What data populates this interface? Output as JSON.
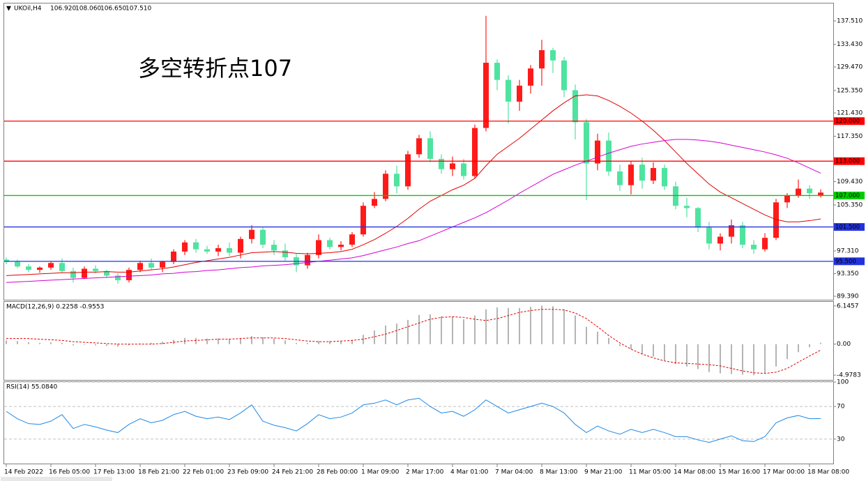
{
  "chart_data": [
    {
      "type": "candlestick",
      "title": "UKOil,H4",
      "header_values": [
        "106.920",
        "108.060",
        "106.650",
        "107.510"
      ],
      "annotation": "多空转折点107",
      "annotation_color": "#ff0000",
      "categories": [
        "14 Feb 2022",
        null,
        null,
        null,
        "16 Feb 05:00",
        null,
        null,
        null,
        "17 Feb 13:00",
        null,
        null,
        null,
        "18 Feb 21:00",
        null,
        null,
        null,
        "22 Feb 01:00",
        null,
        null,
        null,
        "23 Feb 09:00",
        null,
        null,
        null,
        "24 Feb 21:00",
        null,
        null,
        null,
        "28 Feb 00:00",
        null,
        null,
        null,
        "1 Mar 09:00",
        null,
        null,
        null,
        "2 Mar 17:00",
        null,
        null,
        null,
        "4 Mar 01:00",
        null,
        null,
        null,
        "7 Mar 04:00",
        null,
        null,
        null,
        "8 Mar 13:00",
        null,
        null,
        null,
        "9 Mar 21:00",
        null,
        null,
        null,
        "11 Mar 05:00",
        null,
        null,
        null,
        "14 Mar 08:00",
        null,
        null,
        null,
        "15 Mar 16:00",
        null,
        null,
        null,
        "17 Mar 00:00",
        null,
        null,
        null,
        "18 Mar 08:00",
        null
      ],
      "open": [
        95.8,
        95.4,
        94.6,
        94.0,
        94.4,
        95.2,
        93.8,
        92.6,
        94.2,
        93.8,
        93.0,
        92.2,
        94.0,
        95.2,
        94.4,
        95.4,
        97.2,
        98.8,
        97.6,
        97.2,
        97.8,
        97.0,
        99.4,
        101.0,
        98.4,
        97.4,
        96.2,
        94.8,
        96.6,
        99.2,
        98.0,
        98.4,
        100.2,
        105.2,
        106.4,
        110.8,
        108.6,
        114.2,
        117.0,
        113.4,
        111.6,
        112.6,
        110.4,
        118.8,
        130.2,
        127.2,
        123.4,
        126.2,
        129.2,
        132.4,
        130.6,
        125.4,
        119.8,
        112.6,
        116.6,
        111.2,
        108.8,
        112.4,
        109.6,
        111.8,
        108.6,
        105.2,
        104.8,
        101.4,
        98.6,
        99.8,
        101.8,
        98.4,
        97.6,
        99.6,
        105.8,
        107.0,
        108.2,
        106.92
      ],
      "high": [
        96.2,
        95.8,
        95.0,
        94.6,
        95.4,
        96.0,
        94.4,
        94.6,
        94.8,
        94.0,
        93.4,
        94.4,
        95.6,
        96.0,
        95.6,
        97.6,
        99.2,
        99.4,
        98.2,
        98.4,
        98.8,
        99.8,
        101.8,
        101.4,
        99.2,
        98.6,
        96.8,
        97.0,
        100.2,
        99.6,
        99.0,
        100.6,
        105.8,
        107.6,
        111.4,
        112.2,
        114.8,
        117.6,
        118.2,
        114.2,
        113.8,
        113.4,
        119.4,
        138.4,
        130.8,
        128.0,
        127.2,
        129.8,
        134.2,
        132.8,
        131.2,
        126.4,
        120.4,
        117.8,
        118.0,
        112.4,
        113.0,
        113.6,
        112.8,
        112.4,
        109.4,
        106.6,
        105.0,
        102.4,
        100.4,
        102.8,
        102.4,
        99.2,
        100.4,
        106.4,
        107.4,
        109.8,
        108.8,
        108.06
      ],
      "low": [
        95.0,
        94.3,
        93.6,
        93.5,
        94.0,
        93.4,
        91.8,
        92.4,
        93.4,
        92.6,
        91.6,
        91.8,
        93.6,
        94.0,
        93.6,
        95.0,
        96.6,
        97.0,
        96.8,
        96.4,
        96.4,
        96.0,
        98.6,
        97.8,
        96.6,
        95.6,
        93.6,
        94.2,
        96.0,
        97.6,
        97.4,
        98.0,
        99.8,
        104.8,
        106.0,
        107.4,
        108.0,
        113.6,
        112.8,
        110.8,
        110.4,
        109.8,
        110.0,
        118.2,
        125.4,
        119.6,
        121.8,
        124.8,
        126.2,
        128.4,
        124.2,
        116.8,
        106.2,
        111.4,
        110.4,
        107.8,
        107.2,
        108.2,
        109.0,
        108.0,
        104.6,
        103.2,
        100.6,
        97.6,
        97.4,
        98.6,
        97.8,
        96.8,
        97.2,
        99.2,
        104.8,
        106.6,
        106.4,
        106.65
      ],
      "close": [
        95.4,
        94.6,
        94.0,
        94.4,
        95.2,
        93.8,
        92.6,
        94.2,
        93.8,
        93.0,
        92.2,
        94.0,
        95.2,
        94.4,
        95.4,
        97.2,
        98.8,
        97.6,
        97.2,
        97.8,
        97.0,
        99.4,
        101.0,
        98.4,
        97.4,
        96.2,
        94.8,
        96.6,
        99.2,
        98.0,
        98.4,
        100.2,
        105.2,
        106.4,
        110.8,
        108.6,
        114.2,
        117.0,
        113.4,
        111.6,
        112.6,
        110.4,
        118.8,
        130.2,
        127.2,
        123.4,
        126.2,
        129.2,
        132.4,
        130.6,
        125.4,
        119.8,
        112.6,
        116.6,
        111.2,
        108.8,
        112.4,
        109.6,
        111.8,
        108.6,
        105.2,
        104.8,
        101.4,
        98.6,
        99.8,
        101.8,
        98.4,
        97.6,
        99.6,
        105.8,
        107.0,
        108.2,
        107.4,
        107.51
      ],
      "up_color": "#ff1a1a",
      "down_color": "#4fe3a0",
      "overlays": [
        {
          "color": "#e00000",
          "values": [
            93.0,
            93.1,
            93.2,
            93.3,
            93.4,
            93.5,
            93.5,
            93.6,
            93.6,
            93.7,
            93.6,
            93.6,
            93.8,
            94.0,
            94.2,
            94.5,
            94.9,
            95.3,
            95.6,
            95.9,
            96.2,
            96.6,
            97.0,
            97.1,
            97.2,
            97.1,
            96.9,
            96.8,
            96.9,
            97.0,
            97.2,
            97.6,
            98.4,
            99.3,
            100.4,
            101.6,
            103.0,
            104.6,
            106.0,
            107.0,
            108.0,
            108.8,
            110.0,
            112.2,
            114.2,
            115.6,
            117.0,
            118.6,
            120.2,
            121.8,
            123.2,
            124.4,
            124.6,
            124.4,
            123.6,
            122.6,
            121.4,
            120.0,
            118.4,
            116.6,
            114.6,
            112.6,
            110.8,
            109.0,
            107.6,
            106.6,
            105.6,
            104.6,
            103.6,
            102.8,
            102.4,
            102.4,
            102.6,
            102.9
          ]
        },
        {
          "color": "#d400d4",
          "values": [
            91.8,
            91.9,
            92.0,
            92.1,
            92.2,
            92.3,
            92.4,
            92.5,
            92.6,
            92.7,
            92.8,
            92.9,
            93.0,
            93.1,
            93.3,
            93.4,
            93.6,
            93.7,
            93.9,
            94.0,
            94.2,
            94.4,
            94.5,
            94.7,
            94.8,
            94.9,
            95.1,
            95.3,
            95.5,
            95.7,
            95.9,
            96.1,
            96.5,
            97.0,
            97.5,
            98.0,
            98.6,
            99.1,
            99.9,
            100.7,
            101.5,
            102.3,
            103.1,
            104.0,
            105.1,
            106.2,
            107.4,
            108.5,
            109.6,
            110.7,
            111.5,
            112.3,
            113.0,
            113.7,
            114.4,
            115.0,
            115.6,
            116.0,
            116.3,
            116.6,
            116.8,
            116.8,
            116.7,
            116.5,
            116.2,
            115.8,
            115.4,
            115.0,
            114.6,
            114.1,
            113.5,
            112.7,
            111.8,
            110.9
          ]
        }
      ],
      "levels": [
        {
          "value": 120,
          "label": "120.000",
          "color": "#ff0000"
        },
        {
          "value": 113,
          "label": "113.000",
          "color": "#ff0000"
        },
        {
          "value": 107,
          "label": "107.000",
          "color": "#00cc00"
        },
        {
          "value": 101.5,
          "label": "101.500",
          "color": "#2233dd"
        },
        {
          "value": 95.5,
          "label": "95.500",
          "color": "#2233dd"
        }
      ],
      "ylim": [
        88.78,
        140.555
      ],
      "yticks": [
        {
          "value": 137.51,
          "label": "137.510"
        },
        {
          "value": 133.43,
          "label": "133.430"
        },
        {
          "value": 129.47,
          "label": "129.470"
        },
        {
          "value": 125.35,
          "label": "125.350"
        },
        {
          "value": 121.43,
          "label": "121.430"
        },
        {
          "value": 117.35,
          "label": "117.350"
        },
        {
          "value": 109.43,
          "label": "109.430"
        },
        {
          "value": 105.35,
          "label": "105.350"
        },
        {
          "value": 97.31,
          "label": "97.310"
        },
        {
          "value": 93.35,
          "label": "93.350"
        },
        {
          "value": 89.39,
          "label": "89.390"
        }
      ],
      "grid": false
    },
    {
      "type": "macd",
      "title": "MACD(12,26,9) 0.2258 -0.9553",
      "histogram": {
        "color": "#b4b4b4",
        "values": [
          0.6,
          0.5,
          0.3,
          0.2,
          0.3,
          0.2,
          -0.2,
          -0.1,
          -0.2,
          -0.3,
          -0.4,
          -0.2,
          0.1,
          0.2,
          0.4,
          0.7,
          1.0,
          1.0,
          0.9,
          0.9,
          0.8,
          1.0,
          1.3,
          1.1,
          0.9,
          0.6,
          0.2,
          0.2,
          0.5,
          0.5,
          0.5,
          0.7,
          1.5,
          2.2,
          3.0,
          3.3,
          3.9,
          4.7,
          4.8,
          4.5,
          4.4,
          4.0,
          4.6,
          5.6,
          5.9,
          5.8,
          5.8,
          6.0,
          6.2,
          6.1,
          5.6,
          4.6,
          2.8,
          2.0,
          1.0,
          -0.3,
          -0.8,
          -1.6,
          -2.0,
          -2.6,
          -3.2,
          -3.6,
          -4.0,
          -4.5,
          -4.7,
          -4.8,
          -4.9,
          -5.0,
          -4.7,
          -3.6,
          -2.4,
          -1.3,
          -0.5,
          0.2258
        ]
      },
      "signal": {
        "color": "#e00000",
        "values": [
          0.9,
          0.9,
          0.9,
          0.8,
          0.7,
          0.6,
          0.4,
          0.3,
          0.2,
          0.1,
          0.0,
          0.0,
          0.0,
          0.0,
          0.1,
          0.3,
          0.5,
          0.6,
          0.7,
          0.8,
          0.8,
          0.9,
          1.0,
          1.0,
          1.0,
          0.9,
          0.7,
          0.5,
          0.4,
          0.4,
          0.5,
          0.6,
          0.8,
          1.2,
          1.6,
          2.2,
          2.8,
          3.4,
          4.0,
          4.3,
          4.4,
          4.3,
          4.0,
          3.8,
          4.1,
          4.6,
          5.1,
          5.4,
          5.6,
          5.6,
          5.5,
          5.0,
          4.1,
          2.8,
          1.4,
          0.2,
          -0.8,
          -1.6,
          -2.2,
          -2.7,
          -3.0,
          -3.1,
          -3.2,
          -3.3,
          -3.5,
          -3.9,
          -4.3,
          -4.6,
          -4.7,
          -4.5,
          -3.9,
          -2.9,
          -1.9,
          -0.9553
        ]
      },
      "ylim": [
        -5.75,
        6.8
      ],
      "yticks": [
        6.1457,
        {
          "value": 0,
          "label": "0.00"
        },
        -4.9783
      ]
    },
    {
      "type": "line",
      "title": "RSI(14) 55.0840",
      "color": "#1e88e5",
      "values": [
        64,
        55,
        49,
        48,
        52,
        60,
        43,
        48,
        45,
        41,
        38,
        48,
        55,
        50,
        53,
        60,
        64,
        58,
        55,
        57,
        54,
        62,
        72,
        52,
        47,
        44,
        40,
        49,
        60,
        55,
        57,
        62,
        72,
        74,
        78,
        72,
        78,
        80,
        70,
        62,
        64,
        58,
        66,
        78,
        70,
        62,
        66,
        70,
        74,
        70,
        62,
        48,
        38,
        46,
        40,
        36,
        42,
        38,
        42,
        38,
        33,
        33,
        29,
        26,
        30,
        34,
        28,
        27,
        33,
        50,
        56,
        59,
        55,
        55.084
      ],
      "ylim": [
        0,
        100
      ],
      "yticks": [
        100,
        70,
        30
      ],
      "grid": true
    }
  ]
}
